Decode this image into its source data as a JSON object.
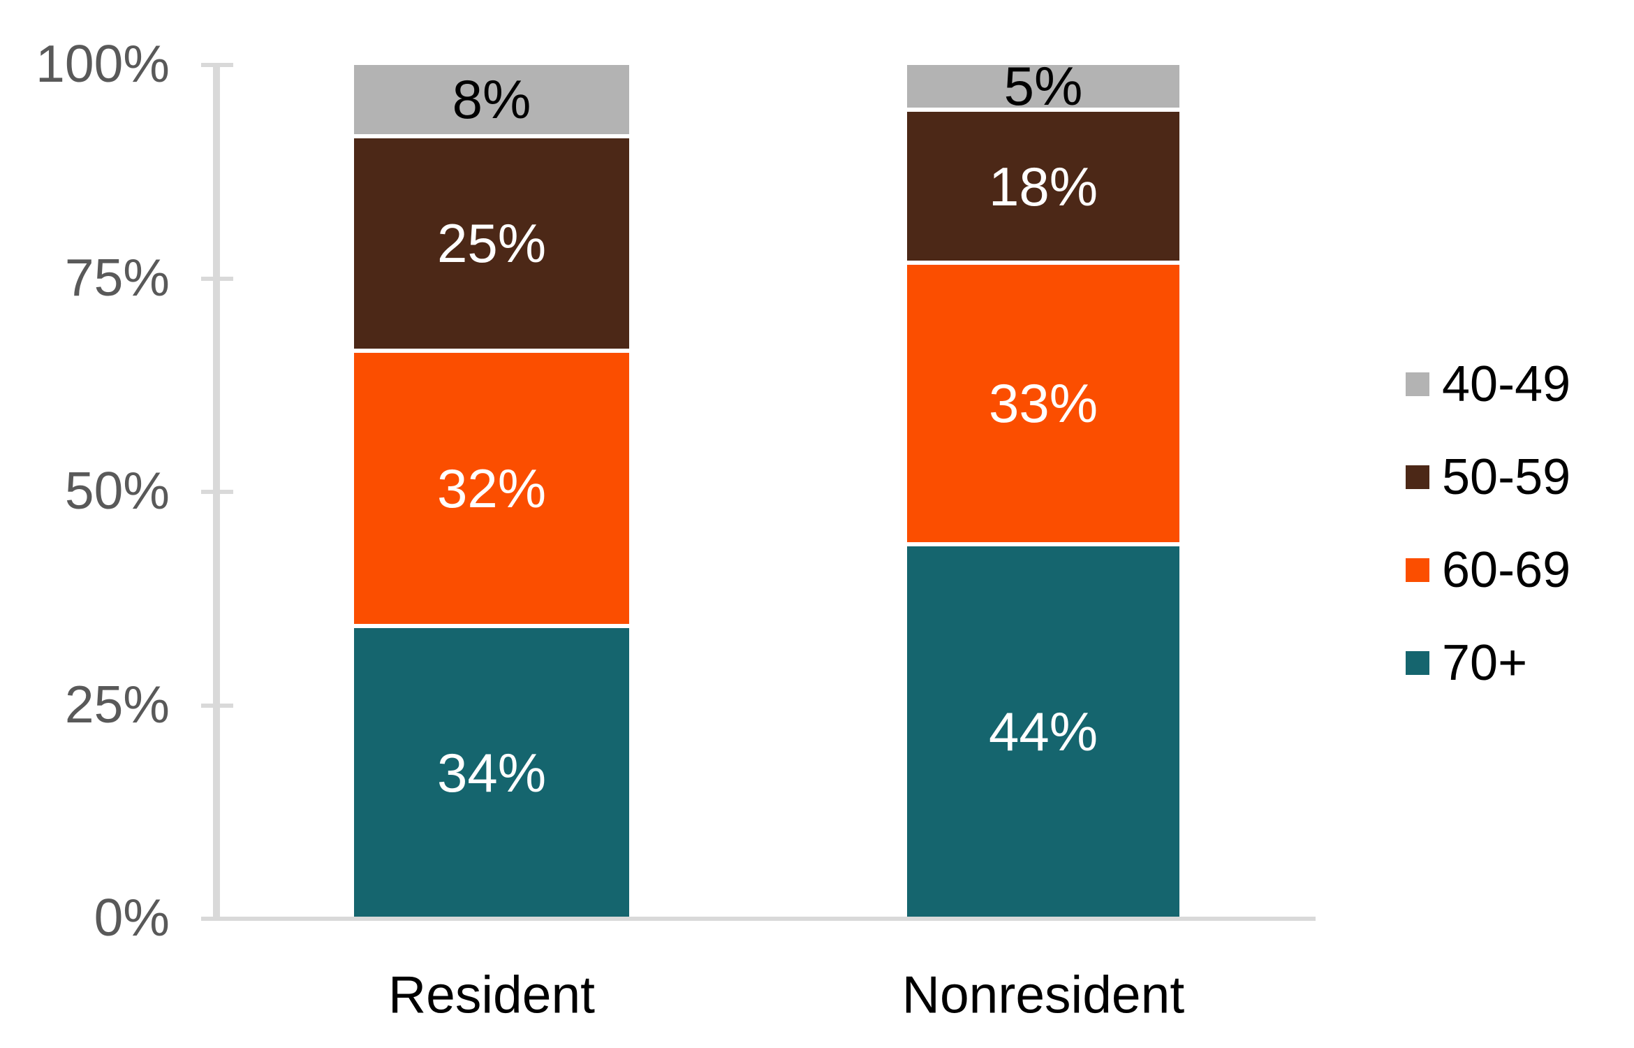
{
  "chart_data": {
    "type": "bar",
    "stacked": true,
    "orientation": "vertical",
    "categories": [
      "Resident",
      "Nonresident"
    ],
    "series": [
      {
        "name": "40-49",
        "color": "#b3b3b3",
        "label_color": "#000000",
        "values": [
          8,
          5
        ],
        "labels": [
          "8%",
          "5%"
        ]
      },
      {
        "name": "50-59",
        "color": "#4c2817",
        "label_color": "#ffffff",
        "values": [
          25,
          18
        ],
        "labels": [
          "25%",
          "18%"
        ]
      },
      {
        "name": "60-69",
        "color": "#fb4e00",
        "label_color": "#ffffff",
        "values": [
          32,
          33
        ],
        "labels": [
          "32%",
          "33%"
        ]
      },
      {
        "name": "70+",
        "color": "#15656e",
        "label_color": "#ffffff",
        "values": [
          34,
          44
        ],
        "labels": [
          "34%",
          "44%"
        ]
      }
    ],
    "stacking_order_top_to_bottom": [
      "40-49",
      "50-59",
      "60-69",
      "70+"
    ],
    "y_axis": {
      "min": 0,
      "max": 100,
      "ticks": [
        "0%",
        "25%",
        "50%",
        "75%",
        "100%"
      ],
      "tick_label_color": "#595959",
      "axis_color": "#d9d9d9"
    },
    "grid": false,
    "legend_position": "right",
    "title": "",
    "xlabel": "",
    "ylabel": ""
  },
  "colors": {
    "background": "#ffffff",
    "segment_gap": "#ffffff",
    "category_label": "#000000",
    "legend_text": "#000000"
  }
}
